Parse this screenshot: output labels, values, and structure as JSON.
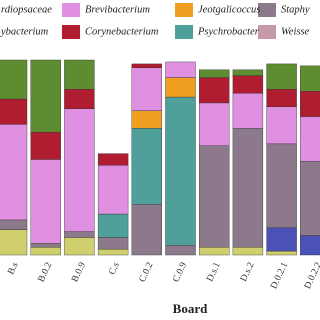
{
  "chart_data": {
    "type": "bar",
    "stacked": true,
    "x_label": "Board",
    "categories": [
      "B.s",
      "B.0.2",
      "B.0.9",
      "C.s",
      "C.0.2",
      "C.0.9",
      "D.s.1",
      "D.s.2",
      "D.0.2.1",
      "D.0.2.2"
    ],
    "series": [
      {
        "name": "ybacterium",
        "color": "#cfcf6e",
        "values": [
          13,
          4,
          9,
          3,
          0,
          0,
          4,
          4,
          2,
          0
        ]
      },
      {
        "name": null,
        "color": "#4a52b8",
        "values": [
          0,
          0,
          0,
          0,
          0,
          0,
          0,
          0,
          12,
          10
        ]
      },
      {
        "name": "Staphy",
        "color": "#8c7a8c",
        "values": [
          5,
          2,
          3,
          6,
          26,
          5,
          52,
          61,
          43,
          38
        ]
      },
      {
        "name": "Weisse",
        "color": "#c89aa8",
        "values": [
          0,
          0,
          0,
          0,
          0,
          0,
          0,
          0,
          0,
          0
        ]
      },
      {
        "name": "Psychrobacter",
        "color": "#4fa09a",
        "values": [
          0,
          0,
          0,
          12,
          39,
          76,
          0,
          0,
          0,
          0
        ]
      },
      {
        "name": "Jeotgalicoccus",
        "color": "#f0a020",
        "values": [
          0,
          0,
          0,
          0,
          9,
          10,
          0,
          0,
          0,
          0
        ]
      },
      {
        "name": "Brevibacterium",
        "color": "#e090e0",
        "values": [
          49,
          43,
          63,
          25,
          22,
          8,
          22,
          18,
          19,
          23
        ]
      },
      {
        "name": "Corynebacterium",
        "color": "#b01c30",
        "values": [
          13,
          14,
          10,
          6,
          2,
          0,
          13,
          9,
          9,
          13
        ]
      },
      {
        "name": "rdiopsaceae",
        "color": "#5e8c30",
        "values": [
          20,
          37,
          15,
          0,
          0,
          0,
          4,
          3,
          13,
          13
        ]
      }
    ]
  }
}
